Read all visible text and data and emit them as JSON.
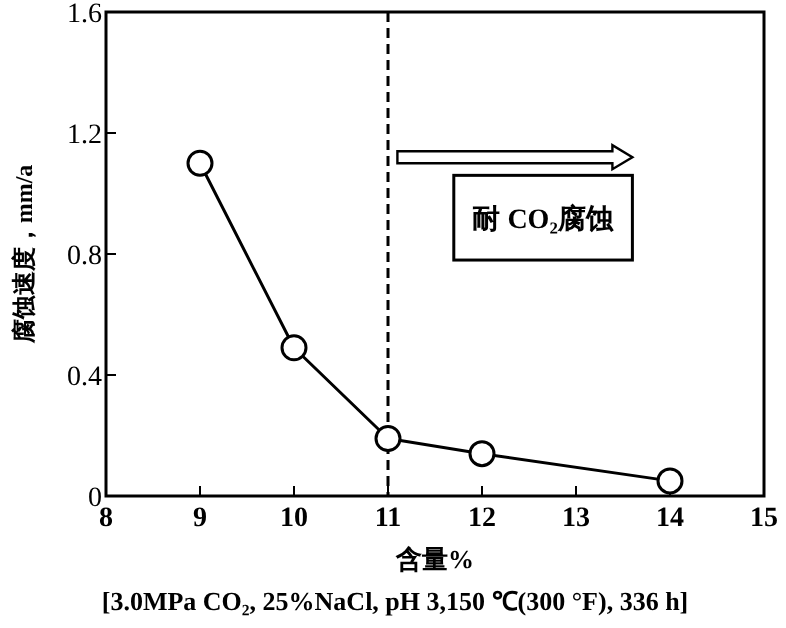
{
  "chart_data": {
    "type": "line",
    "xlabel": "含量%",
    "ylabel": "腐蚀速度，mm/a",
    "x": [
      9,
      10,
      11,
      12,
      14
    ],
    "series": [
      {
        "color": "#000000",
        "values": [
          1.1,
          0.49,
          0.19,
          0.14,
          0.05
        ]
      }
    ],
    "marker": "circle",
    "line_style": "solid",
    "xlim": [
      8,
      15
    ],
    "xticks": [
      8,
      9,
      10,
      11,
      12,
      13,
      14,
      15
    ],
    "ylim": [
      0,
      1.6
    ],
    "yticks": [
      0,
      0.4,
      0.8,
      1.2,
      1.6
    ],
    "grid": false,
    "ref_lines": [
      {
        "axis": "x",
        "value": 11,
        "line_style": "dashed",
        "color": "#000000"
      }
    ],
    "annotations": [
      "耐 CO₂腐蚀",
      "[3.0MPa  CO₂, 25%NaCl, pH 3,150 ℃(300 °F), 336 h]"
    ]
  }
}
